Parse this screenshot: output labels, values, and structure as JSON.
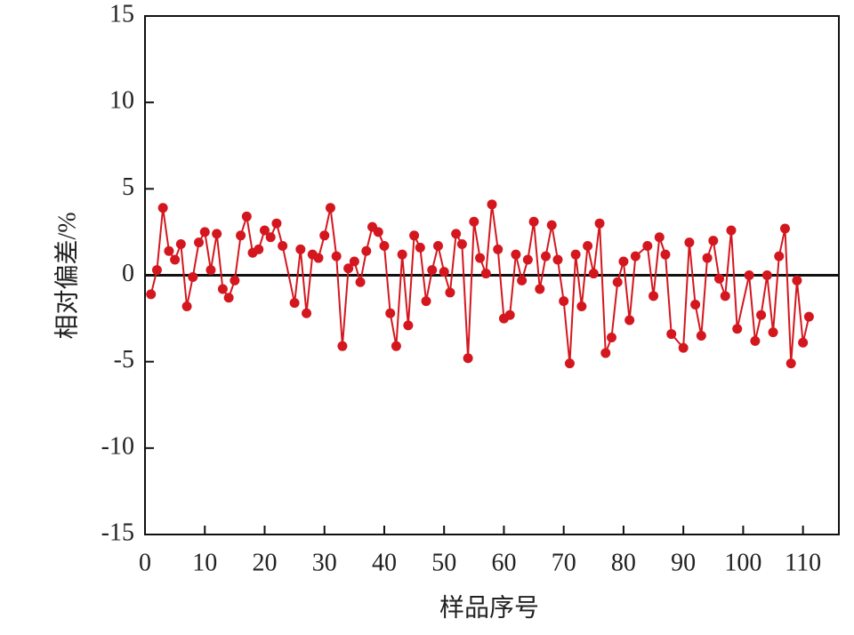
{
  "chart_data": {
    "type": "line",
    "x_label": "样品序号",
    "y_label": "相对偏差/%",
    "xlim": [
      0,
      116
    ],
    "ylim": [
      -15,
      15
    ],
    "xticks": [
      0,
      10,
      20,
      30,
      40,
      50,
      60,
      70,
      80,
      90,
      100,
      110
    ],
    "yticks": [
      -15,
      -10,
      -5,
      0,
      5,
      10,
      15
    ],
    "series": [
      {
        "name": null,
        "color": "#d4171e",
        "x": [
          1,
          2,
          3,
          4,
          5,
          6,
          7,
          8,
          9,
          10,
          11,
          12,
          13,
          14,
          15,
          16,
          17,
          18,
          19,
          20,
          21,
          22,
          23,
          25,
          26,
          27,
          28,
          29,
          30,
          31,
          32,
          33,
          34,
          35,
          36,
          37,
          38,
          39,
          40,
          41,
          42,
          43,
          44,
          45,
          46,
          47,
          48,
          49,
          50,
          51,
          52,
          53,
          54,
          55,
          56,
          57,
          58,
          59,
          60,
          61,
          62,
          63,
          64,
          65,
          66,
          67,
          68,
          69,
          70,
          71,
          72,
          73,
          74,
          75,
          76,
          77,
          78,
          79,
          80,
          81,
          82,
          84,
          85,
          86,
          87,
          88,
          90,
          91,
          92,
          93,
          94,
          95,
          96,
          97,
          98,
          99,
          101,
          102,
          103,
          104,
          105,
          106,
          107,
          108,
          109,
          110,
          111
        ],
        "values": [
          -1.1,
          0.3,
          3.9,
          1.4,
          0.9,
          1.8,
          -1.8,
          -0.1,
          1.9,
          2.5,
          0.3,
          2.4,
          -0.8,
          -1.3,
          -0.3,
          2.3,
          3.4,
          1.3,
          1.5,
          2.6,
          2.2,
          3.0,
          1.7,
          -1.6,
          1.5,
          -2.2,
          1.2,
          1.0,
          2.3,
          3.9,
          1.1,
          -4.1,
          0.4,
          0.8,
          -0.4,
          1.4,
          2.8,
          2.5,
          1.7,
          -2.2,
          -4.1,
          1.2,
          -2.9,
          2.3,
          1.6,
          -1.5,
          0.3,
          1.7,
          0.2,
          -1.0,
          2.4,
          1.8,
          -4.8,
          3.1,
          1.0,
          0.1,
          4.1,
          1.5,
          -2.5,
          -2.3,
          1.2,
          -0.3,
          0.9,
          3.1,
          -0.8,
          1.1,
          2.9,
          0.9,
          -1.5,
          -5.1,
          1.2,
          -1.8,
          1.7,
          0.1,
          3.0,
          -4.5,
          -3.6,
          -0.4,
          0.8,
          -2.6,
          1.1,
          1.7,
          -1.2,
          2.2,
          1.2,
          -3.4,
          -4.2,
          1.9,
          -1.7,
          -3.5,
          1.0,
          2.0,
          -0.2,
          -1.2,
          2.6,
          -3.1,
          0.0,
          -3.8,
          -2.3,
          0.0,
          -3.3,
          1.1,
          2.7,
          -5.1,
          -0.3,
          -3.9,
          -2.4
        ]
      }
    ]
  }
}
